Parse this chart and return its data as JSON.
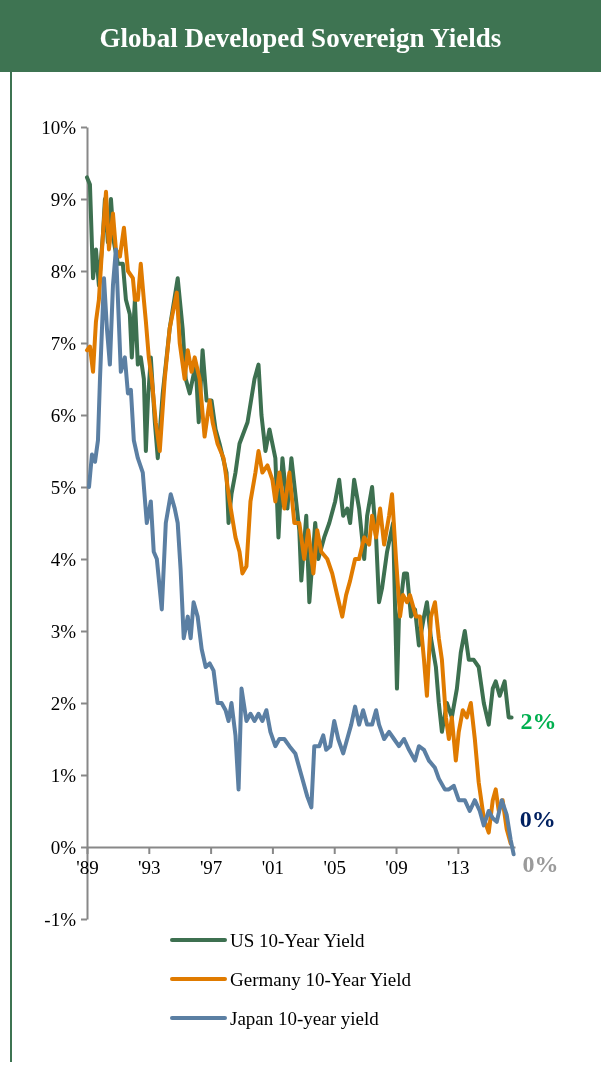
{
  "chart_data": {
    "type": "line",
    "title": "Global Developed Sovereign Yields",
    "legend": "bottom",
    "marker": "none",
    "line_style": "solid",
    "grid": false,
    "xlim": [
      1989,
      2016.7
    ],
    "xticks": [
      {
        "value": 1989,
        "label": "'89"
      },
      {
        "value": 1993,
        "label": "'93"
      },
      {
        "value": 1997,
        "label": "'97"
      },
      {
        "value": 2001,
        "label": "'01"
      },
      {
        "value": 2005,
        "label": "'05"
      },
      {
        "value": 2009,
        "label": "'09"
      },
      {
        "value": 2013,
        "label": "'13"
      }
    ],
    "ylim": [
      -1,
      10
    ],
    "yticks": [
      {
        "value": -1,
        "label": "-1%"
      },
      {
        "value": 0,
        "label": "0%"
      },
      {
        "value": 1,
        "label": "1%"
      },
      {
        "value": 2,
        "label": "2%"
      },
      {
        "value": 3,
        "label": "3%"
      },
      {
        "value": 4,
        "label": "4%"
      },
      {
        "value": 5,
        "label": "5%"
      },
      {
        "value": 6,
        "label": "6%"
      },
      {
        "value": 7,
        "label": "7%"
      },
      {
        "value": 8,
        "label": "8%"
      },
      {
        "value": 9,
        "label": "9%"
      },
      {
        "value": 10,
        "label": "10%"
      }
    ],
    "annotations": [
      {
        "text": "2%",
        "x": 2016.48,
        "y": 1.75
      },
      {
        "text": "0%",
        "x": 2016.42,
        "y": 0.4
      },
      {
        "text": "0%",
        "x": 2016.61,
        "y": -0.1
      }
    ],
    "series": [
      {
        "name": "US 10-Year Yield",
        "color": "#3d7050",
        "x": [
          1989,
          1989.19,
          1989.39,
          1989.58,
          1989.77,
          1990.03,
          1990.16,
          1990.35,
          1990.55,
          1990.74,
          1991,
          1991.32,
          1991.52,
          1991.77,
          1991.9,
          1992.1,
          1992.29,
          1992.48,
          1992.68,
          1992.81,
          1992.94,
          1993.13,
          1993.39,
          1993.58,
          1993.9,
          1994.35,
          1994.87,
          1995.19,
          1995.39,
          1995.65,
          1996.03,
          1996.23,
          1996.48,
          1996.74,
          1997.06,
          1997.32,
          1997.58,
          1998.03,
          1998.16,
          1998.35,
          1998.61,
          1998.87,
          1999.39,
          1999.84,
          2000.1,
          2000.29,
          2000.55,
          2000.81,
          2001.19,
          2001.39,
          2001.65,
          2001.97,
          2002.23,
          2002.74,
          2002.87,
          2003.19,
          2003.39,
          2003.77,
          2003.97,
          2004.35,
          2004.68,
          2005.06,
          2005.32,
          2005.58,
          2005.84,
          2006.03,
          2006.29,
          2006.61,
          2006.94,
          2007.13,
          2007.45,
          2007.71,
          2007.9,
          2008.1,
          2008.42,
          2008.81,
          2009.06,
          2009.19,
          2009.52,
          2009.71,
          2009.97,
          2010.23,
          2010.48,
          2010.81,
          2011,
          2011.26,
          2011.58,
          2011.77,
          2011.97,
          2012.29,
          2012.61,
          2012.94,
          2013.19,
          2013.45,
          2013.71,
          2014.03,
          2014.35,
          2014.68,
          2015,
          2015.26,
          2015.45,
          2015.71,
          2016.03,
          2016.29,
          2016.48
        ],
        "values": [
          9.3,
          9.2,
          7.9,
          8.3,
          7.8,
          8.5,
          9.0,
          8.4,
          9.0,
          8.4,
          8.1,
          8.1,
          7.6,
          7.4,
          6.8,
          7.6,
          6.7,
          6.8,
          6.5,
          5.5,
          6.2,
          6.8,
          5.9,
          5.4,
          6.3,
          7.2,
          7.9,
          7.2,
          6.5,
          6.3,
          6.7,
          5.9,
          6.9,
          6.2,
          6.2,
          5.8,
          5.6,
          5.2,
          4.5,
          4.9,
          5.2,
          5.6,
          5.9,
          6.5,
          6.7,
          6.0,
          5.5,
          5.8,
          5.4,
          4.3,
          5.4,
          4.7,
          5.4,
          4.4,
          3.7,
          4.6,
          3.4,
          4.5,
          4.0,
          4.3,
          4.5,
          4.8,
          5.1,
          4.6,
          4.7,
          4.5,
          5.1,
          4.7,
          4.0,
          4.6,
          5.0,
          4.3,
          3.4,
          3.6,
          4.1,
          4.5,
          2.2,
          3.2,
          3.8,
          3.8,
          3.2,
          3.3,
          2.8,
          3.2,
          3.4,
          2.9,
          2.5,
          2.0,
          1.6,
          2.0,
          1.8,
          2.2,
          2.7,
          3.0,
          2.6,
          2.6,
          2.5,
          2.0,
          1.7,
          2.2,
          2.3,
          2.1,
          2.3,
          1.8,
          1.8
        ]
      },
      {
        "name": "Germany 10-Year Yield",
        "color": "#e07b00",
        "x": [
          1989,
          1989.19,
          1989.39,
          1989.58,
          1989.77,
          1990.03,
          1990.23,
          1990.42,
          1990.68,
          1990.87,
          1991.13,
          1991.39,
          1991.65,
          1991.97,
          1992.1,
          1992.29,
          1992.48,
          1992.68,
          1992.81,
          1993,
          1993.19,
          1993.45,
          1993.71,
          1994.03,
          1994.35,
          1994.81,
          1995,
          1995.32,
          1995.52,
          1995.77,
          1995.97,
          1996.29,
          1996.61,
          1996.94,
          1997.13,
          1997.45,
          1997.84,
          1998.23,
          1998.61,
          1998.87,
          1999.06,
          1999.32,
          1999.58,
          1999.9,
          2000.1,
          2000.35,
          2000.68,
          2001,
          2001.19,
          2001.45,
          2001.77,
          2002.1,
          2002.42,
          2002.74,
          2003.06,
          2003.32,
          2003.65,
          2003.9,
          2004.16,
          2004.55,
          2004.87,
          2005.19,
          2005.52,
          2005.77,
          2006.03,
          2006.35,
          2006.61,
          2006.94,
          2007.26,
          2007.45,
          2007.71,
          2007.97,
          2008.23,
          2008.55,
          2008.74,
          2009,
          2009.26,
          2009.45,
          2009.71,
          2009.9,
          2010.29,
          2010.55,
          2010.81,
          2011,
          2011.26,
          2011.52,
          2011.77,
          2011.97,
          2012.23,
          2012.42,
          2012.61,
          2012.87,
          2013.06,
          2013.32,
          2013.58,
          2013.84,
          2014.1,
          2014.35,
          2014.68,
          2015,
          2015.26,
          2015.45,
          2015.65,
          2015.9,
          2016.16,
          2016.42
        ],
        "values": [
          6.9,
          6.95,
          6.6,
          7.3,
          7.6,
          8.5,
          9.1,
          8.3,
          8.8,
          8.3,
          8.2,
          8.6,
          8.0,
          7.9,
          7.6,
          7.6,
          8.1,
          7.6,
          7.3,
          6.8,
          6.5,
          5.9,
          5.5,
          6.5,
          7.2,
          7.7,
          7.0,
          6.5,
          6.9,
          6.6,
          6.8,
          6.5,
          5.7,
          6.2,
          5.9,
          5.6,
          5.4,
          4.8,
          4.3,
          4.1,
          3.8,
          3.9,
          4.8,
          5.2,
          5.5,
          5.2,
          5.3,
          5.1,
          4.8,
          5.2,
          4.7,
          5.2,
          4.5,
          4.5,
          4.0,
          4.4,
          3.8,
          4.4,
          4.1,
          4.0,
          3.8,
          3.5,
          3.2,
          3.5,
          3.7,
          4.0,
          4.0,
          4.3,
          4.2,
          4.6,
          4.3,
          4.7,
          4.2,
          4.6,
          4.9,
          4.0,
          3.2,
          3.5,
          3.4,
          3.5,
          3.2,
          3.2,
          2.6,
          2.1,
          3.2,
          3.4,
          2.9,
          2.6,
          1.8,
          1.5,
          1.8,
          1.2,
          1.6,
          1.9,
          1.8,
          2.0,
          1.5,
          0.9,
          0.4,
          0.2,
          0.65,
          0.8,
          0.5,
          0.65,
          0.25,
          0.05
        ]
      },
      {
        "name": "Japan 10-year yield",
        "color": "#5b7fa3",
        "x": [
          1989.13,
          1989.32,
          1989.52,
          1989.71,
          1989.84,
          1990.1,
          1990.29,
          1990.48,
          1990.68,
          1990.87,
          1991.06,
          1991.19,
          1991.45,
          1991.65,
          1991.84,
          1992.03,
          1992.29,
          1992.61,
          1992.87,
          1993.13,
          1993.32,
          1993.52,
          1993.84,
          1994.1,
          1994.42,
          1994.68,
          1994.87,
          1995.06,
          1995.26,
          1995.52,
          1995.71,
          1995.9,
          1996.16,
          1996.42,
          1996.68,
          1996.94,
          1997.19,
          1997.45,
          1997.71,
          1997.97,
          1998.16,
          1998.35,
          1998.61,
          1998.81,
          1999,
          1999.32,
          1999.58,
          1999.84,
          2000.1,
          2000.35,
          2000.61,
          2000.87,
          2001.19,
          2001.45,
          2001.77,
          2002.1,
          2002.48,
          2002.87,
          2003.26,
          2003.52,
          2003.71,
          2004.03,
          2004.29,
          2004.48,
          2004.74,
          2005,
          2005.26,
          2005.58,
          2005.84,
          2006.1,
          2006.35,
          2006.61,
          2006.87,
          2007.13,
          2007.45,
          2007.71,
          2007.9,
          2008.23,
          2008.55,
          2008.87,
          2009.19,
          2009.52,
          2009.84,
          2010.23,
          2010.48,
          2010.81,
          2011.13,
          2011.52,
          2011.77,
          2012.16,
          2012.42,
          2012.74,
          2013.06,
          2013.45,
          2013.77,
          2014.1,
          2014.42,
          2014.68,
          2015,
          2015.26,
          2015.52,
          2015.84,
          2016.16,
          2016.42,
          2016.61
        ],
        "values": [
          5.0,
          5.45,
          5.35,
          5.65,
          6.5,
          7.9,
          7.2,
          6.7,
          7.8,
          8.3,
          7.3,
          6.6,
          6.8,
          6.3,
          6.35,
          5.65,
          5.4,
          5.2,
          4.5,
          4.8,
          4.1,
          4.0,
          3.3,
          4.5,
          4.9,
          4.7,
          4.5,
          3.85,
          2.9,
          3.2,
          2.9,
          3.4,
          3.2,
          2.75,
          2.5,
          2.55,
          2.45,
          2.0,
          2.0,
          1.9,
          1.75,
          2.0,
          1.55,
          0.8,
          2.2,
          1.75,
          1.85,
          1.75,
          1.85,
          1.75,
          1.9,
          1.6,
          1.4,
          1.5,
          1.5,
          1.4,
          1.3,
          1.0,
          0.7,
          0.55,
          1.4,
          1.4,
          1.55,
          1.35,
          1.4,
          1.75,
          1.5,
          1.3,
          1.5,
          1.7,
          1.95,
          1.7,
          1.9,
          1.7,
          1.7,
          1.9,
          1.7,
          1.5,
          1.6,
          1.5,
          1.4,
          1.5,
          1.35,
          1.2,
          1.4,
          1.35,
          1.2,
          1.1,
          0.95,
          0.8,
          0.8,
          0.85,
          0.65,
          0.65,
          0.5,
          0.65,
          0.5,
          0.3,
          0.5,
          0.4,
          0.35,
          0.65,
          0.45,
          0.1,
          -0.1
        ]
      }
    ]
  }
}
